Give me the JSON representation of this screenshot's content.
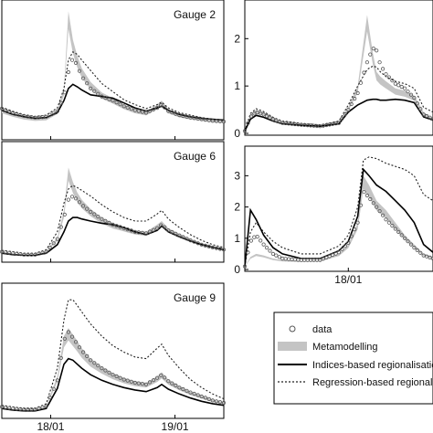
{
  "figure": {
    "colors": {
      "metamodelling": "#c4c4c4",
      "indices": "#000000",
      "regression": "#222222",
      "data_marker": "#555555",
      "axes": "#000000"
    }
  },
  "chart_data": [
    {
      "type": "line",
      "panel": "top-left",
      "gauge_label": "Gauge 2",
      "x_ticks": [
        "18/01",
        "19/01"
      ],
      "y_ticks": [],
      "ylim": [
        0,
        1.6
      ],
      "x": [
        0,
        0.05,
        0.1,
        0.15,
        0.2,
        0.25,
        0.28,
        0.3,
        0.32,
        0.34,
        0.36,
        0.4,
        0.45,
        0.5,
        0.55,
        0.6,
        0.65,
        0.7,
        0.72,
        0.75,
        0.8,
        0.85,
        0.9,
        0.95,
        1.0
      ],
      "series": [
        {
          "name": "data",
          "values": [
            0.35,
            0.3,
            0.26,
            0.24,
            0.25,
            0.32,
            0.5,
            0.8,
            0.98,
            0.88,
            0.75,
            0.6,
            0.5,
            0.45,
            0.38,
            0.33,
            0.3,
            0.36,
            0.4,
            0.32,
            0.27,
            0.24,
            0.22,
            0.2,
            0.19
          ]
        },
        {
          "name": "Metamodelling",
          "values": [
            0.34,
            0.29,
            0.25,
            0.23,
            0.24,
            0.33,
            0.6,
            1.55,
            1.2,
            1.0,
            0.85,
            0.68,
            0.55,
            0.48,
            0.4,
            0.34,
            0.31,
            0.4,
            0.45,
            0.34,
            0.28,
            0.25,
            0.23,
            0.21,
            0.2
          ]
        },
        {
          "name": "Indices-based regionalisation",
          "values": [
            0.33,
            0.28,
            0.25,
            0.23,
            0.24,
            0.3,
            0.45,
            0.6,
            0.65,
            0.62,
            0.58,
            0.52,
            0.5,
            0.48,
            0.42,
            0.36,
            0.32,
            0.36,
            0.38,
            0.33,
            0.28,
            0.25,
            0.23,
            0.22,
            0.21
          ]
        },
        {
          "name": "Regression-based regionalisation",
          "values": [
            0.36,
            0.31,
            0.27,
            0.25,
            0.27,
            0.36,
            0.6,
            0.95,
            1.05,
            1.02,
            0.95,
            0.82,
            0.66,
            0.56,
            0.46,
            0.4,
            0.35,
            0.4,
            0.43,
            0.36,
            0.3,
            0.27,
            0.24,
            0.22,
            0.21
          ]
        }
      ]
    },
    {
      "type": "line",
      "panel": "top-right",
      "gauge_label": "",
      "x_ticks": [],
      "y_ticks": [
        "0",
        "1",
        "2"
      ],
      "ylim": [
        0,
        2.7
      ],
      "x": [
        0,
        0.03,
        0.06,
        0.1,
        0.15,
        0.2,
        0.3,
        0.4,
        0.5,
        0.55,
        0.6,
        0.65,
        0.68,
        0.7,
        0.72,
        0.75,
        0.8,
        0.85,
        0.9,
        0.95,
        1.0
      ],
      "series": [
        {
          "name": "data",
          "values": [
            0.05,
            0.35,
            0.45,
            0.4,
            0.3,
            0.22,
            0.18,
            0.15,
            0.22,
            0.5,
            0.85,
            1.5,
            1.8,
            1.75,
            1.45,
            1.25,
            1.05,
            0.95,
            0.75,
            0.4,
            0.3
          ]
        },
        {
          "name": "Metamodelling",
          "values": [
            0.05,
            0.4,
            0.5,
            0.45,
            0.33,
            0.25,
            0.2,
            0.17,
            0.25,
            0.55,
            1.0,
            2.5,
            1.7,
            1.3,
            1.2,
            1.1,
            0.95,
            0.9,
            0.8,
            0.45,
            0.3
          ]
        },
        {
          "name": "Indices-based regionalisation",
          "values": [
            0.05,
            0.3,
            0.38,
            0.34,
            0.26,
            0.2,
            0.17,
            0.15,
            0.2,
            0.45,
            0.6,
            0.7,
            0.72,
            0.72,
            0.7,
            0.7,
            0.72,
            0.7,
            0.65,
            0.35,
            0.28
          ]
        },
        {
          "name": "Regression-based regionalisation",
          "values": [
            0.05,
            0.42,
            0.52,
            0.46,
            0.34,
            0.26,
            0.21,
            0.18,
            0.26,
            0.6,
            1.0,
            1.35,
            1.42,
            1.4,
            1.3,
            1.2,
            1.1,
            1.05,
            0.95,
            0.55,
            0.45
          ]
        }
      ]
    },
    {
      "type": "line",
      "panel": "middle-left",
      "gauge_label": "Gauge 6",
      "x_ticks": [
        "18/01",
        "19/01"
      ],
      "y_ticks": [],
      "ylim": [
        0,
        1.6
      ],
      "x": [
        0,
        0.05,
        0.1,
        0.15,
        0.2,
        0.25,
        0.28,
        0.3,
        0.32,
        0.34,
        0.36,
        0.4,
        0.45,
        0.5,
        0.55,
        0.6,
        0.65,
        0.7,
        0.72,
        0.75,
        0.8,
        0.85,
        0.9,
        0.95,
        1.0
      ],
      "series": [
        {
          "name": "data",
          "values": [
            0.12,
            0.1,
            0.08,
            0.08,
            0.12,
            0.3,
            0.6,
            0.85,
            0.9,
            0.85,
            0.78,
            0.68,
            0.58,
            0.5,
            0.45,
            0.4,
            0.38,
            0.45,
            0.5,
            0.42,
            0.35,
            0.28,
            0.22,
            0.18,
            0.15
          ]
        },
        {
          "name": "Metamodelling",
          "values": [
            0.12,
            0.1,
            0.08,
            0.08,
            0.13,
            0.32,
            0.7,
            1.3,
            1.1,
            0.95,
            0.85,
            0.72,
            0.6,
            0.52,
            0.47,
            0.42,
            0.4,
            0.5,
            0.55,
            0.45,
            0.37,
            0.3,
            0.24,
            0.2,
            0.17
          ]
        },
        {
          "name": "Indices-based regionalisation",
          "values": [
            0.1,
            0.08,
            0.07,
            0.07,
            0.1,
            0.22,
            0.4,
            0.55,
            0.6,
            0.6,
            0.58,
            0.55,
            0.52,
            0.5,
            0.46,
            0.4,
            0.36,
            0.42,
            0.48,
            0.4,
            0.33,
            0.27,
            0.22,
            0.18,
            0.15
          ]
        },
        {
          "name": "Regression-based regionalisation",
          "values": [
            0.14,
            0.12,
            0.1,
            0.1,
            0.15,
            0.4,
            0.8,
            1.0,
            1.05,
            1.02,
            0.98,
            0.9,
            0.78,
            0.68,
            0.6,
            0.55,
            0.55,
            0.65,
            0.7,
            0.58,
            0.46,
            0.36,
            0.28,
            0.22,
            0.18
          ]
        }
      ]
    },
    {
      "type": "line",
      "panel": "middle-right",
      "gauge_label": "",
      "x_ticks": [
        "18/01"
      ],
      "y_ticks": [
        "0",
        "1",
        "2",
        "3"
      ],
      "ylim": [
        0,
        3.8
      ],
      "x": [
        0,
        0.03,
        0.06,
        0.1,
        0.15,
        0.2,
        0.3,
        0.4,
        0.5,
        0.55,
        0.6,
        0.63,
        0.66,
        0.7,
        0.75,
        0.8,
        0.85,
        0.9,
        0.95,
        1.0
      ],
      "series": [
        {
          "name": "data",
          "values": [
            0.1,
            0.9,
            1.1,
            0.8,
            0.5,
            0.35,
            0.3,
            0.3,
            0.55,
            0.85,
            1.5,
            2.5,
            2.3,
            2.0,
            1.6,
            1.3,
            1.0,
            0.7,
            0.45,
            0.35
          ]
        },
        {
          "name": "Metamodelling",
          "values": [
            0.1,
            0.4,
            0.5,
            0.45,
            0.35,
            0.3,
            0.28,
            0.3,
            0.5,
            0.8,
            1.5,
            3.0,
            2.7,
            2.2,
            1.9,
            1.5,
            1.1,
            0.8,
            0.5,
            0.4
          ]
        },
        {
          "name": "Indices-based regionalisation",
          "values": [
            0.1,
            1.9,
            1.6,
            1.1,
            0.7,
            0.5,
            0.35,
            0.35,
            0.6,
            0.9,
            1.7,
            3.2,
            3.0,
            2.7,
            2.5,
            2.2,
            1.9,
            1.5,
            0.8,
            0.55
          ]
        },
        {
          "name": "Regression-based regionalisation",
          "values": [
            0.1,
            1.2,
            1.5,
            1.2,
            0.9,
            0.7,
            0.5,
            0.5,
            0.75,
            1.1,
            2.0,
            3.5,
            3.6,
            3.55,
            3.4,
            3.3,
            3.2,
            3.0,
            2.4,
            2.2
          ]
        }
      ]
    },
    {
      "type": "line",
      "panel": "bottom-left",
      "gauge_label": "Gauge 9",
      "x_ticks": [
        "18/01",
        "19/01"
      ],
      "y_ticks": [],
      "ylim": [
        0,
        1.6
      ],
      "x": [
        0,
        0.05,
        0.1,
        0.15,
        0.2,
        0.25,
        0.28,
        0.3,
        0.32,
        0.34,
        0.36,
        0.4,
        0.45,
        0.5,
        0.55,
        0.6,
        0.65,
        0.7,
        0.72,
        0.75,
        0.8,
        0.85,
        0.9,
        0.95,
        1.0
      ],
      "series": [
        {
          "name": "data",
          "values": [
            0.12,
            0.1,
            0.09,
            0.09,
            0.13,
            0.45,
            0.95,
            1.05,
            0.98,
            0.9,
            0.82,
            0.7,
            0.6,
            0.52,
            0.46,
            0.42,
            0.4,
            0.48,
            0.52,
            0.44,
            0.36,
            0.3,
            0.25,
            0.2,
            0.17
          ]
        },
        {
          "name": "Metamodelling",
          "values": [
            0.12,
            0.1,
            0.09,
            0.09,
            0.14,
            0.5,
            1.0,
            1.1,
            1.02,
            0.94,
            0.85,
            0.72,
            0.62,
            0.54,
            0.48,
            0.44,
            0.42,
            0.5,
            0.55,
            0.46,
            0.38,
            0.31,
            0.26,
            0.21,
            0.18
          ]
        },
        {
          "name": "Indices-based regionalisation",
          "values": [
            0.1,
            0.08,
            0.07,
            0.07,
            0.1,
            0.35,
            0.65,
            0.72,
            0.7,
            0.65,
            0.6,
            0.52,
            0.45,
            0.4,
            0.36,
            0.33,
            0.31,
            0.36,
            0.4,
            0.34,
            0.28,
            0.23,
            0.19,
            0.16,
            0.14
          ]
        },
        {
          "name": "Regression-based regionalisation",
          "values": [
            0.14,
            0.12,
            0.1,
            0.1,
            0.16,
            0.6,
            1.2,
            1.45,
            1.45,
            1.38,
            1.3,
            1.15,
            1.0,
            0.88,
            0.8,
            0.74,
            0.72,
            0.85,
            0.9,
            0.76,
            0.6,
            0.46,
            0.36,
            0.28,
            0.22
          ]
        }
      ]
    }
  ],
  "legend": {
    "items": [
      {
        "name": "data",
        "kind": "marker"
      },
      {
        "name": "Metamodelling",
        "kind": "band"
      },
      {
        "name": "Indices-based regionalisation",
        "kind": "solid"
      },
      {
        "name": "Regression-based regionalisation",
        "kind": "dashed"
      }
    ]
  }
}
